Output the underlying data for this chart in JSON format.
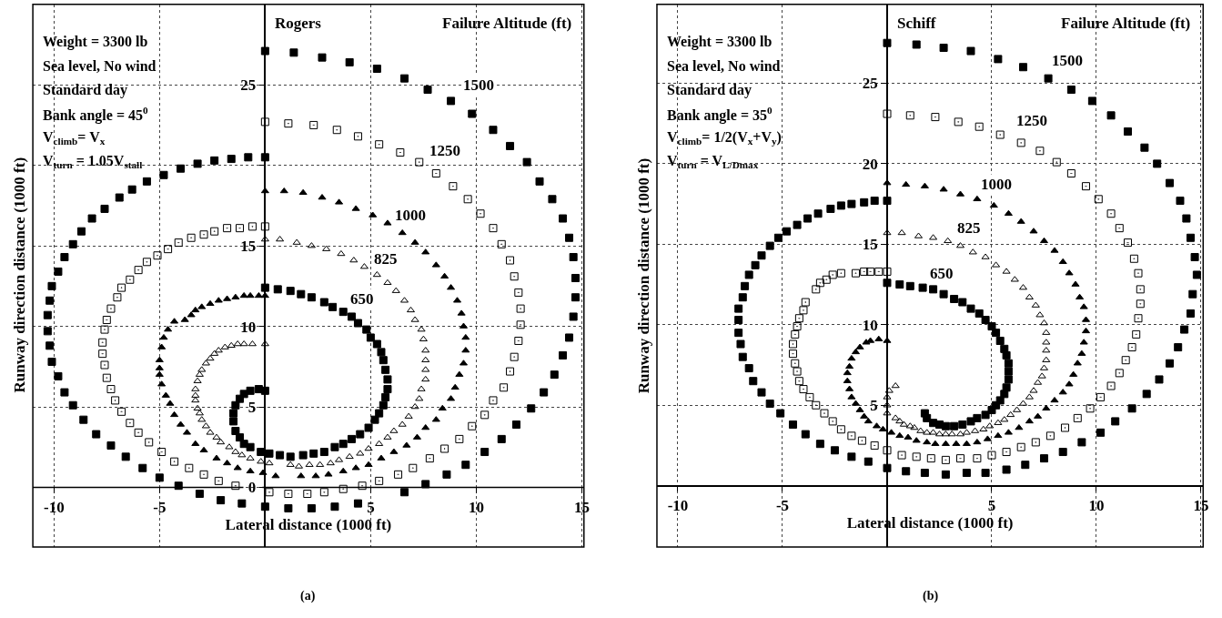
{
  "chart_data": [
    {
      "type": "scatter",
      "xlabel": "Lateral distance (1000 ft)",
      "ylabel": "Runway direction distance (1000 ft)",
      "xlim": [
        -11,
        15.1
      ],
      "ylim": [
        -3.7,
        30
      ],
      "xticks": [
        -10,
        -5,
        5,
        10,
        15
      ],
      "yticks": [
        0,
        5,
        10,
        15,
        {
          "value": 20,
          "label": null
        },
        25
      ],
      "grid": true,
      "annotations": [
        "Weight = 3300 lb",
        "Sea level, No wind",
        "Standard day",
        "Bank angle = 45$^{0}$",
        "V$_{climb}$= V$_{x}$",
        "V$_{turn}$ = 1.05V$_{stall}$",
        "Rogers",
        "Failure Altitude (ft)",
        "(a)",
        {
          "text": "1500",
          "x": 10.1,
          "y": 25.0
        },
        {
          "text": "1250",
          "x": 8.5,
          "y": 20.9
        },
        {
          "text": "1000",
          "x": 6.9,
          "y": 16.9
        },
        {
          "text": "825",
          "x": 5.7,
          "y": 14.2
        },
        {
          "text": "650",
          "x": 4.6,
          "y": 11.7
        }
      ],
      "series": [
        {
          "color": "#000000",
          "marker": "square",
          "x": [
            0,
            1.36,
            2.7,
            4.0,
            5.3,
            6.6,
            7.7,
            8.8,
            9.8,
            10.8,
            11.6,
            12.4,
            13.0,
            13.6,
            14.1,
            14.4,
            14.6,
            14.7,
            14.7,
            14.6,
            14.4,
            14.1,
            13.7,
            13.2,
            12.6,
            11.9,
            11.2,
            10.4,
            9.5,
            8.6,
            7.6,
            6.6,
            4.4,
            3.3,
            2.2,
            1.1,
            0,
            -1.1,
            -2.1,
            -3.1,
            -4.1,
            -5.0,
            -5.8,
            -6.6,
            -7.3,
            -8.0,
            -8.6,
            -9.1,
            -9.5,
            -9.8,
            -10.1,
            -10.2,
            -10.3,
            -10.3,
            -10.2,
            -10.1,
            -9.8,
            -9.5,
            -9.1,
            -8.7,
            -8.2,
            -7.6,
            -6.9,
            -6.3,
            -5.6,
            -4.8,
            -4.0,
            -3.2,
            -2.4,
            -1.6,
            -0.8,
            0
          ],
          "values": [
            27.1,
            27.0,
            26.7,
            26.4,
            26.0,
            25.4,
            24.7,
            24.0,
            23.2,
            22.2,
            21.2,
            20.2,
            19.0,
            17.9,
            16.7,
            15.5,
            14.3,
            13.0,
            11.8,
            10.6,
            9.3,
            8.2,
            7.0,
            5.9,
            4.9,
            3.9,
            3.0,
            2.2,
            1.4,
            0.8,
            0.2,
            -0.3,
            -1.0,
            -1.2,
            -1.3,
            -1.3,
            -1.2,
            -1.0,
            -0.8,
            -0.4,
            0.1,
            0.6,
            1.2,
            1.9,
            2.6,
            3.3,
            4.2,
            5.1,
            5.9,
            6.9,
            7.8,
            8.8,
            9.7,
            10.7,
            11.6,
            12.5,
            13.4,
            14.3,
            15.1,
            15.9,
            16.7,
            17.3,
            18.0,
            18.5,
            19.0,
            19.4,
            19.8,
            20.1,
            20.3,
            20.4,
            20.5,
            20.5
          ]
        },
        {
          "color": "#000000",
          "marker": "square-open",
          "x": [
            0,
            1.1,
            2.3,
            3.4,
            4.4,
            5.4,
            6.4,
            7.3,
            8.1,
            8.9,
            9.6,
            10.2,
            10.8,
            11.2,
            11.6,
            11.8,
            12.0,
            12.1,
            12.1,
            12.0,
            11.8,
            11.6,
            11.3,
            10.8,
            10.4,
            9.8,
            9.2,
            8.5,
            7.8,
            7.0,
            6.3,
            5.4,
            4.6,
            3.7,
            2.8,
            2.0,
            1.1,
            0.2,
            -1.4,
            -2.2,
            -2.9,
            -3.6,
            -4.3,
            -4.9,
            -5.5,
            -6.0,
            -6.4,
            -6.8,
            -7.1,
            -7.3,
            -7.5,
            -7.6,
            -7.7,
            -7.7,
            -7.6,
            -7.5,
            -7.3,
            -7.0,
            -6.8,
            -6.4,
            -6.0,
            -5.6,
            -5.1,
            -4.6,
            -4.1,
            -3.5,
            -2.9,
            -2.4,
            -1.8,
            -1.2,
            -0.6,
            0
          ],
          "values": [
            22.7,
            22.6,
            22.5,
            22.2,
            21.8,
            21.3,
            20.8,
            20.2,
            19.5,
            18.7,
            17.9,
            17.0,
            16.1,
            15.1,
            14.1,
            13.1,
            12.1,
            11.1,
            10.1,
            9.1,
            8.1,
            7.2,
            6.2,
            5.4,
            4.5,
            3.8,
            3.0,
            2.4,
            1.8,
            1.2,
            0.8,
            0.4,
            0.1,
            -0.1,
            -0.3,
            -0.4,
            -0.4,
            -0.3,
            0.1,
            0.4,
            0.8,
            1.2,
            1.6,
            2.2,
            2.8,
            3.4,
            4.0,
            4.7,
            5.4,
            6.1,
            6.8,
            7.6,
            8.3,
            9.0,
            9.8,
            10.4,
            11.1,
            11.8,
            12.4,
            12.9,
            13.5,
            14.0,
            14.4,
            14.8,
            15.2,
            15.5,
            15.7,
            15.9,
            16.1,
            16.1,
            16.2,
            16.2
          ]
        },
        {
          "color": "#000000",
          "marker": "triangle",
          "x": [
            0,
            0.9,
            1.8,
            2.7,
            3.5,
            4.3,
            5.1,
            5.8,
            6.5,
            7.1,
            7.6,
            8.1,
            8.5,
            8.8,
            9.1,
            9.3,
            9.4,
            9.5,
            9.5,
            9.4,
            9.2,
            9.0,
            8.8,
            8.4,
            8.1,
            7.6,
            7.2,
            6.7,
            6.1,
            5.5,
            4.9,
            4.3,
            3.7,
            3.0,
            2.4,
            1.7,
            0.5,
            -0.1,
            -0.7,
            -1.3,
            -1.8,
            -2.3,
            -2.9,
            -3.3,
            -3.7,
            -4.0,
            -4.3,
            -4.5,
            -4.7,
            -4.9,
            -5.0,
            -5.0,
            -5.0,
            -4.9,
            -4.8,
            -4.6,
            -4.3,
            -3.8,
            -3.5,
            -3.3,
            -3.0,
            -2.6,
            -2.2,
            -1.8,
            -1.4,
            -1.0,
            -0.7,
            -0.3,
            0
          ],
          "values": [
            18.4,
            18.4,
            18.3,
            18.0,
            17.7,
            17.3,
            16.9,
            16.4,
            15.8,
            15.2,
            14.6,
            13.8,
            13.1,
            12.4,
            11.6,
            10.8,
            10.0,
            9.3,
            8.5,
            7.7,
            7.0,
            6.2,
            5.5,
            4.9,
            4.2,
            3.7,
            3.1,
            2.6,
            2.2,
            1.8,
            1.4,
            1.2,
            1.0,
            0.8,
            0.7,
            0.7,
            0.7,
            0.9,
            1.0,
            1.2,
            1.5,
            1.8,
            2.3,
            2.7,
            3.4,
            3.9,
            4.5,
            5.2,
            5.7,
            6.4,
            7.0,
            7.4,
            7.9,
            8.7,
            9.3,
            9.8,
            10.3,
            10.4,
            10.7,
            11.0,
            11.2,
            11.4,
            11.6,
            11.7,
            11.8,
            11.9,
            11.9,
            11.9,
            11.9
          ]
        },
        {
          "color": "#000000",
          "marker": "triangle-open",
          "x": [
            0,
            0.7,
            1.5,
            2.2,
            2.9,
            3.6,
            4.2,
            4.7,
            5.3,
            5.8,
            6.2,
            6.6,
            6.9,
            7.1,
            7.4,
            7.5,
            7.6,
            7.6,
            7.6,
            7.6,
            7.4,
            7.3,
            7.1,
            6.8,
            6.5,
            6.1,
            5.8,
            5.4,
            4.9,
            4.5,
            4.0,
            3.5,
            3.1,
            2.6,
            2.1,
            1.6,
            1.2,
            0.2,
            -0.2,
            -0.7,
            -1.1,
            -1.4,
            -1.7,
            -2.1,
            -2.3,
            -2.6,
            -2.8,
            -3.0,
            -3.1,
            -3.2,
            -3.3,
            -3.3,
            -3.3,
            -3.2,
            -3.1,
            -3.0,
            -2.8,
            -2.6,
            -2.4,
            -2.2,
            -1.9,
            -1.6,
            -1.3,
            -1.0,
            -0.6,
            0
          ],
          "values": [
            15.4,
            15.4,
            15.2,
            15.0,
            14.8,
            14.5,
            14.1,
            13.7,
            13.2,
            12.7,
            12.2,
            11.6,
            11.0,
            10.4,
            9.8,
            9.2,
            8.5,
            7.9,
            7.3,
            6.7,
            6.1,
            5.5,
            5.0,
            4.4,
            3.9,
            3.5,
            3.1,
            2.7,
            2.4,
            2.1,
            1.9,
            1.7,
            1.5,
            1.4,
            1.4,
            1.3,
            1.4,
            1.5,
            1.6,
            1.8,
            2.0,
            2.2,
            2.5,
            2.8,
            3.1,
            3.4,
            3.8,
            4.2,
            4.6,
            4.9,
            5.4,
            5.7,
            6.1,
            6.6,
            7.0,
            7.3,
            7.7,
            8.0,
            8.3,
            8.5,
            8.7,
            8.8,
            8.9,
            8.9,
            8.9,
            8.9
          ]
        },
        {
          "color": "#000000",
          "marker": "square",
          "x": [
            0,
            0.6,
            1.2,
            1.7,
            2.2,
            2.8,
            3.2,
            3.7,
            4.1,
            4.4,
            4.8,
            5.0,
            5.3,
            5.5,
            5.6,
            5.7,
            5.8,
            5.8,
            5.7,
            5.6,
            5.4,
            5.2,
            4.9,
            4.5,
            4.1,
            3.7,
            3.3,
            2.8,
            2.3,
            1.8,
            1.2,
            0.7,
            0.2,
            -0.2,
            -0.7,
            -1.0,
            -1.2,
            -1.4,
            -1.5,
            -1.5,
            -1.4,
            -1.2,
            -1.0,
            -0.7,
            -0.3,
            0
          ],
          "values": [
            12.4,
            12.3,
            12.2,
            12.0,
            11.8,
            11.5,
            11.2,
            10.9,
            10.6,
            10.2,
            9.8,
            9.3,
            8.9,
            8.4,
            7.9,
            7.3,
            6.7,
            6.1,
            5.6,
            5.1,
            4.6,
            4.2,
            3.7,
            3.3,
            3.0,
            2.7,
            2.5,
            2.2,
            2.1,
            2.0,
            1.9,
            2.0,
            2.1,
            2.2,
            2.5,
            2.7,
            3.1,
            3.5,
            4.1,
            4.6,
            5.1,
            5.5,
            5.8,
            6.0,
            6.1,
            6.0
          ]
        }
      ]
    },
    {
      "type": "scatter",
      "xlabel": "Lateral distance (1000 ft)",
      "ylabel": "Runway direction distance (1000 ft)",
      "xlim": [
        -11,
        15.1
      ],
      "ylim": [
        -3.8,
        29.9
      ],
      "xticks": [
        -10,
        -5,
        5,
        10,
        15
      ],
      "yticks": [
        5,
        10,
        15,
        20,
        25
      ],
      "grid": true,
      "annotations": [
        "Weight = 3300 lb",
        "Sea level, No wind",
        "Standard day",
        "Bank angle = 35$^{0}$",
        "V$_{climb}$= 1/2(V$_{x}$+V$_{y}$)",
        "V$_{turn}$ = V$_{L/Dmax}$",
        "Schiff",
        "Failure Altitude (ft)",
        "(b)",
        {
          "text": "1500",
          "x": 8.6,
          "y": 26.4
        },
        {
          "text": "1250",
          "x": 6.9,
          "y": 22.7
        },
        {
          "text": "1000",
          "x": 5.2,
          "y": 18.7
        },
        {
          "text": "825",
          "x": 3.9,
          "y": 16.0
        },
        {
          "text": "650",
          "x": 2.6,
          "y": 13.2
        }
      ],
      "series": [
        {
          "color": "#000000",
          "marker": "square",
          "x": [
            0,
            1.4,
            2.7,
            4.0,
            5.3,
            6.5,
            7.7,
            8.8,
            9.8,
            10.7,
            11.5,
            12.3,
            12.9,
            13.5,
            14.0,
            14.3,
            14.5,
            14.7,
            14.8,
            14.6,
            14.5,
            14.2,
            13.9,
            13.5,
            13.0,
            12.4,
            11.7,
            10.9,
            10.2,
            9.3,
            8.4,
            7.5,
            6.6,
            5.7,
            4.7,
            3.8,
            2.8,
            1.8,
            0.9,
            0,
            -0.9,
            -1.7,
            -2.5,
            -3.2,
            -3.9,
            -4.5,
            -5.1,
            -5.6,
            -6.0,
            -6.4,
            -6.6,
            -6.9,
            -7.0,
            -7.1,
            -7.1,
            -7.1,
            -6.9,
            -6.8,
            -6.6,
            -6.3,
            -6.0,
            -5.6,
            -5.2,
            -4.8,
            -4.3,
            -3.8,
            -3.3,
            -2.7,
            -2.2,
            -1.7,
            -1.1,
            -0.6,
            0
          ],
          "values": [
            27.5,
            27.4,
            27.2,
            27.0,
            26.5,
            26.0,
            25.3,
            24.6,
            23.9,
            23.0,
            22.0,
            21.0,
            20.0,
            18.8,
            17.7,
            16.6,
            15.4,
            14.2,
            13.1,
            11.9,
            10.7,
            9.7,
            8.6,
            7.6,
            6.6,
            5.7,
            4.8,
            4.0,
            3.3,
            2.7,
            2.1,
            1.7,
            1.3,
            1.0,
            0.8,
            0.8,
            0.7,
            0.8,
            0.9,
            1.1,
            1.5,
            1.8,
            2.2,
            2.6,
            3.2,
            3.8,
            4.5,
            5.1,
            5.8,
            6.5,
            7.3,
            8.0,
            8.8,
            9.5,
            10.3,
            11.0,
            11.7,
            12.4,
            13.1,
            13.7,
            14.3,
            14.9,
            15.4,
            15.8,
            16.2,
            16.6,
            16.9,
            17.2,
            17.4,
            17.5,
            17.6,
            17.7,
            17.7
          ]
        },
        {
          "color": "#000000",
          "marker": "square-open",
          "x": [
            0,
            1.1,
            2.3,
            3.4,
            4.4,
            5.4,
            6.4,
            7.3,
            8.1,
            8.8,
            9.5,
            10.1,
            10.7,
            11.1,
            11.5,
            11.8,
            12.0,
            12.1,
            12.1,
            12.0,
            11.9,
            11.7,
            11.4,
            11.1,
            10.7,
            10.2,
            9.7,
            9.1,
            8.5,
            7.8,
            7.1,
            6.4,
            5.7,
            5.0,
            4.3,
            3.5,
            2.8,
            2.1,
            1.4,
            0.7,
            0,
            -0.6,
            -1.2,
            -1.7,
            -2.2,
            -2.6,
            -3.0,
            -3.4,
            -3.7,
            -4.0,
            -4.2,
            -4.3,
            -4.4,
            -4.5,
            -4.5,
            -4.4,
            -4.3,
            -4.2,
            -4.0,
            -3.9,
            -3.4,
            -3.2,
            -2.9,
            -2.6,
            -2.2,
            -1.5,
            -1.1,
            -0.8,
            -0.4,
            0
          ],
          "values": [
            23.1,
            23.0,
            22.9,
            22.6,
            22.3,
            21.8,
            21.3,
            20.8,
            20.1,
            19.4,
            18.6,
            17.8,
            16.9,
            16.0,
            15.1,
            14.1,
            13.2,
            12.2,
            11.3,
            10.4,
            9.4,
            8.6,
            7.8,
            7.0,
            6.2,
            5.5,
            4.8,
            4.2,
            3.6,
            3.1,
            2.7,
            2.4,
            2.1,
            1.9,
            1.7,
            1.7,
            1.6,
            1.7,
            1.8,
            1.9,
            2.2,
            2.5,
            2.8,
            3.1,
            3.5,
            4.0,
            4.5,
            5.0,
            5.5,
            6.0,
            6.5,
            7.1,
            7.6,
            8.2,
            8.8,
            9.4,
            9.9,
            10.4,
            10.9,
            11.4,
            12.2,
            12.6,
            12.8,
            13.1,
            13.2,
            13.2,
            13.3,
            13.3,
            13.3,
            13.3
          ]
        },
        {
          "color": "#000000",
          "marker": "triangle",
          "x": [
            0,
            0.9,
            1.8,
            2.7,
            3.5,
            4.3,
            5.1,
            5.8,
            6.4,
            7.0,
            7.5,
            8.0,
            8.4,
            8.7,
            9.0,
            9.2,
            9.4,
            9.5,
            9.5,
            9.4,
            9.3,
            9.1,
            8.9,
            8.7,
            8.4,
            8.0,
            7.6,
            7.2,
            6.8,
            6.3,
            5.8,
            5.3,
            4.8,
            4.3,
            3.8,
            3.3,
            2.8,
            2.3,
            1.9,
            1.4,
            1.0,
            0.6,
            0.2,
            -0.2,
            -0.5,
            -0.9,
            -1.1,
            -1.3,
            -1.5,
            -1.7,
            -1.8,
            -1.9,
            -1.9,
            -1.8,
            -1.7,
            -1.5,
            -1.3,
            -1.0,
            -0.8,
            -0.4,
            0
          ],
          "values": [
            18.8,
            18.7,
            18.6,
            18.4,
            18.1,
            17.8,
            17.4,
            16.9,
            16.4,
            15.8,
            15.2,
            14.6,
            13.9,
            13.2,
            12.5,
            11.7,
            11.1,
            10.3,
            9.6,
            8.9,
            8.2,
            7.6,
            6.9,
            6.3,
            5.8,
            5.3,
            4.8,
            4.3,
            4.0,
            3.6,
            3.3,
            3.1,
            2.9,
            2.7,
            2.6,
            2.6,
            2.6,
            2.6,
            2.7,
            2.8,
            3.0,
            3.1,
            3.3,
            3.5,
            3.7,
            4.0,
            4.3,
            4.7,
            5.1,
            5.5,
            6.0,
            6.5,
            7.0,
            7.4,
            7.9,
            8.3,
            8.6,
            8.9,
            9.0,
            9.1,
            9.0
          ]
        },
        {
          "color": "#000000",
          "marker": "triangle-open",
          "x": [
            0,
            0.7,
            1.5,
            2.2,
            2.9,
            3.5,
            4.1,
            4.7,
            5.2,
            5.7,
            6.1,
            6.5,
            6.8,
            7.1,
            7.3,
            7.5,
            7.6,
            7.6,
            7.6,
            7.6,
            7.5,
            7.4,
            7.2,
            7.0,
            6.8,
            6.5,
            6.2,
            5.9,
            5.6,
            5.3,
            4.9,
            4.6,
            4.2,
            3.8,
            3.5,
            3.1,
            2.8,
            2.5,
            2.2,
            1.9,
            1.6,
            1.3,
            1.1,
            0.8,
            0.6,
            0.4,
            0,
            0,
            0,
            0.1,
            0.4
          ],
          "values": [
            15.7,
            15.7,
            15.5,
            15.4,
            15.2,
            14.9,
            14.5,
            14.2,
            13.7,
            13.3,
            12.8,
            12.3,
            11.7,
            11.2,
            10.6,
            10.1,
            9.5,
            8.9,
            8.4,
            7.8,
            7.3,
            6.8,
            6.4,
            5.9,
            5.5,
            5.1,
            4.7,
            4.4,
            4.1,
            3.9,
            3.7,
            3.5,
            3.4,
            3.3,
            3.2,
            3.2,
            3.2,
            3.2,
            3.3,
            3.3,
            3.4,
            3.6,
            3.7,
            3.8,
            4.0,
            4.2,
            4.5,
            5.0,
            5.5,
            5.9,
            6.2
          ]
        },
        {
          "color": "#000000",
          "marker": "square",
          "x": [
            0,
            0.6,
            1.1,
            1.7,
            2.2,
            2.7,
            3.2,
            3.6,
            4.0,
            4.4,
            4.7,
            5.0,
            5.2,
            5.4,
            5.6,
            5.7,
            5.8,
            5.8,
            5.8,
            5.7,
            5.6,
            5.4,
            5.2,
            5.0,
            4.7,
            4.3,
            4.0,
            3.6,
            3.2,
            2.8,
            2.5,
            2.2,
            1.9,
            1.8
          ],
          "values": [
            12.6,
            12.5,
            12.4,
            12.3,
            12.2,
            11.9,
            11.6,
            11.4,
            11.0,
            10.7,
            10.3,
            9.9,
            9.5,
            9.0,
            8.5,
            8.1,
            7.6,
            7.1,
            6.6,
            6.1,
            5.7,
            5.3,
            5.0,
            4.7,
            4.4,
            4.2,
            4.0,
            3.8,
            3.7,
            3.7,
            3.8,
            3.9,
            4.2,
            4.5
          ]
        }
      ]
    }
  ]
}
